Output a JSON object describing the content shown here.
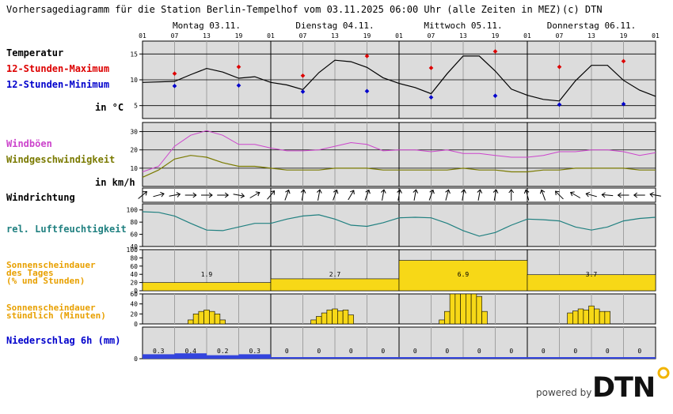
{
  "header": {
    "title": "Vorhersagediagramm für die Station Berlin-Tempelhof vom 03.11.2025 06:00 Uhr (alle Zeiten in MEZ)",
    "copyright": "(c) DTN"
  },
  "days": [
    "Montag 03.11.",
    "Dienstag 04.11.",
    "Mittwoch 05.11.",
    "Donnerstag 06.11."
  ],
  "hour_ticks": [
    "01",
    "07",
    "13",
    "19"
  ],
  "hour_tick_end": "01",
  "labels": {
    "temperature": "Temperatur",
    "tmax": "12-Stunden-Maximum",
    "tmin": "12-Stunden-Minimum",
    "temp_unit": "in °C",
    "gusts": "Windböen",
    "wind_speed": "Windgeschwindigkeit",
    "wind_unit": "in km/h",
    "wind_direction": "Windrichtung",
    "humidity": "rel. Luftfeuchtigkeit",
    "sun_daily_1": "Sonnenscheindauer",
    "sun_daily_2": "des Tages",
    "sun_daily_3": "(% und Stunden)",
    "sun_hourly_1": "Sonnenscheindauer",
    "sun_hourly_2": "stündlich (Minuten)",
    "precip": "Niederschlag 6h (mm)"
  },
  "footer": {
    "powered_by": "powered by",
    "logo": "DTN"
  },
  "colors": {
    "panel_bg": "#dcdcdc",
    "temp_line": "#000000",
    "tmax": "#dd0000",
    "tmin": "#0000cc",
    "gusts": "#cc44cc",
    "wind": "#7a7a00",
    "humidity": "#208080",
    "sun": "#f7d817",
    "sun_label": "#e8a000",
    "precip": "#3344dd",
    "precip_label": "#0000cc"
  },
  "chart_data": [
    {
      "type": "line",
      "name": "temperature",
      "x_unit": "hours from 03.11. 01:00",
      "ylim": [
        2.5,
        17.5
      ],
      "yticks": [
        5,
        10,
        15
      ],
      "x": [
        0,
        6,
        9,
        12,
        15,
        18,
        21,
        24,
        27,
        30,
        33,
        36,
        39,
        42,
        45,
        48,
        51,
        54,
        57,
        60,
        63,
        66,
        69,
        72,
        75,
        78,
        81,
        84,
        87,
        90,
        93,
        96
      ],
      "y": [
        9.5,
        9.7,
        11,
        12.2,
        11.5,
        10.3,
        10.6,
        9.5,
        9.0,
        8.1,
        11.4,
        13.8,
        13.5,
        12.4,
        10.4,
        9.3,
        8.5,
        7.3,
        11.2,
        14.6,
        14.6,
        11.7,
        8.2,
        7.0,
        6.2,
        5.9,
        9.8,
        12.8,
        12.8,
        9.9,
        8.0,
        6.8
      ],
      "max_points": {
        "x": [
          6,
          18,
          30,
          42,
          54,
          66,
          78,
          90
        ],
        "y": [
          11.2,
          12.5,
          10.8,
          14.6,
          12.3,
          15.5,
          12.5,
          13.6
        ]
      },
      "min_points": {
        "x": [
          6,
          18,
          30,
          42,
          54,
          66,
          78,
          90
        ],
        "y": [
          8.8,
          8.9,
          7.7,
          7.8,
          6.6,
          6.9,
          5.2,
          5.3
        ]
      }
    },
    {
      "type": "line",
      "name": "wind",
      "ylim": [
        0,
        35
      ],
      "yticks": [
        10,
        20,
        30
      ],
      "x": [
        0,
        3,
        6,
        9,
        12,
        15,
        18,
        21,
        24,
        27,
        30,
        33,
        36,
        39,
        42,
        45,
        48,
        51,
        54,
        57,
        60,
        63,
        66,
        69,
        72,
        75,
        78,
        81,
        84,
        87,
        90,
        93,
        96
      ],
      "gusts": [
        8,
        11,
        22,
        28,
        30.5,
        28,
        23,
        23,
        21,
        19.5,
        19.5,
        20,
        22,
        24,
        23,
        19.5,
        20,
        20,
        19,
        20,
        18,
        18,
        17,
        16,
        16,
        17,
        19,
        19,
        20,
        20,
        19,
        17,
        18.5
      ],
      "speed": [
        5,
        9,
        15,
        17,
        16,
        13,
        11,
        11,
        10,
        9,
        9,
        9,
        10,
        10,
        10,
        9,
        9,
        9,
        9,
        9,
        10,
        9,
        9,
        8,
        8,
        9,
        9,
        10,
        10,
        10,
        10,
        9,
        9
      ]
    },
    {
      "type": "table",
      "name": "wind_direction",
      "note": "arrow angle in degrees, 0 = pointing up, 90 = pointing right",
      "x": [
        0,
        3,
        6,
        9,
        12,
        15,
        18,
        21,
        24,
        27,
        30,
        33,
        36,
        39,
        42,
        45,
        48,
        51,
        54,
        57,
        60,
        63,
        66,
        69,
        72,
        75,
        78,
        81,
        84,
        87,
        90,
        93,
        96
      ],
      "angle": [
        50,
        75,
        80,
        90,
        90,
        90,
        100,
        60,
        40,
        20,
        10,
        10,
        20,
        30,
        20,
        10,
        10,
        10,
        20,
        15,
        10,
        10,
        10,
        0,
        -15,
        -20,
        -45,
        -60,
        -75,
        -85,
        -90,
        -90,
        -80
      ]
    },
    {
      "type": "line",
      "name": "humidity",
      "ylim": [
        40,
        110
      ],
      "yticks": [
        40,
        60,
        80,
        100
      ],
      "x": [
        0,
        3,
        6,
        9,
        12,
        15,
        18,
        21,
        24,
        27,
        30,
        33,
        36,
        39,
        42,
        45,
        48,
        51,
        54,
        57,
        60,
        63,
        66,
        69,
        72,
        75,
        78,
        81,
        84,
        87,
        90,
        93,
        96
      ],
      "y": [
        97,
        96,
        90,
        78,
        67,
        66,
        72,
        78,
        78,
        85,
        90,
        92,
        85,
        75,
        73,
        79,
        87,
        88,
        87,
        78,
        66,
        57,
        63,
        75,
        85,
        84,
        82,
        72,
        67,
        72,
        82,
        86,
        88
      ]
    },
    {
      "type": "bar",
      "name": "sunshine_daily",
      "ylim": [
        0,
        100
      ],
      "yticks": [
        0,
        20,
        40,
        60,
        80,
        100
      ],
      "categories": [
        "Montag 03.11.",
        "Dienstag 04.11.",
        "Mittwoch 05.11.",
        "Donnerstag 06.11."
      ],
      "values_percent": [
        20,
        29,
        74,
        39
      ],
      "labels": [
        "1.9",
        "2.7",
        "6.9",
        "3.7"
      ]
    },
    {
      "type": "bar",
      "name": "sunshine_hourly",
      "ylim": [
        0,
        60
      ],
      "yticks": [
        0,
        20,
        40,
        60
      ],
      "x": [
        9,
        10,
        11,
        12,
        13,
        14,
        15,
        32,
        33,
        34,
        35,
        36,
        37,
        38,
        39,
        56,
        57,
        58,
        59,
        60,
        61,
        62,
        63,
        64,
        80,
        81,
        82,
        83,
        84,
        85,
        86,
        87
      ],
      "values": [
        8,
        20,
        25,
        28,
        25,
        20,
        8,
        8,
        15,
        22,
        28,
        30,
        26,
        28,
        18,
        8,
        25,
        60,
        60,
        60,
        60,
        60,
        55,
        25,
        22,
        26,
        30,
        28,
        36,
        30,
        25,
        25
      ]
    },
    {
      "type": "bar",
      "name": "precipitation_6h",
      "ylim": [
        0,
        2
      ],
      "x": [
        0,
        6,
        12,
        18,
        24,
        30,
        36,
        42,
        48,
        54,
        60,
        66,
        72,
        78,
        84,
        90
      ],
      "values": [
        0.3,
        0.4,
        0.2,
        0.3,
        0,
        0,
        0,
        0,
        0,
        0,
        0,
        0,
        0,
        0,
        0,
        0
      ],
      "labels": [
        "0.3",
        "0.4",
        "0.2",
        "0.3",
        "0",
        "0",
        "0",
        "0",
        "0",
        "0",
        "0",
        "0",
        "0",
        "0",
        "0",
        "0"
      ]
    }
  ]
}
